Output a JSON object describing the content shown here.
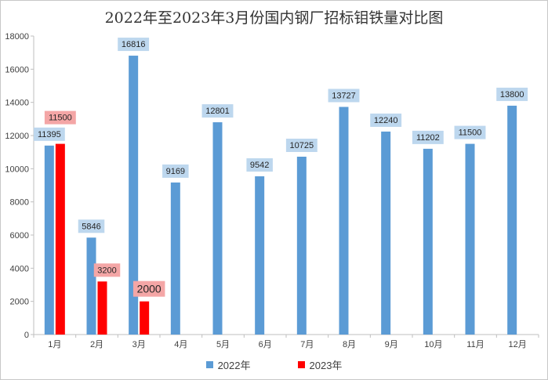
{
  "chart_data": {
    "type": "bar",
    "title": "2022年至2023年3月份国内钢厂招标钼铁量对比图",
    "categories": [
      "1月",
      "2月",
      "3月",
      "4月",
      "5月",
      "6月",
      "7月",
      "8月",
      "9月",
      "10月",
      "11月",
      "12月"
    ],
    "series": [
      {
        "name": "2022年",
        "color": "#5b9bd5",
        "values": [
          11395,
          5846,
          16816,
          9169,
          12801,
          9542,
          10725,
          13727,
          12240,
          11202,
          11500,
          13800
        ]
      },
      {
        "name": "2023年",
        "color": "#ff0000",
        "values": [
          11500,
          3200,
          2000,
          null,
          null,
          null,
          null,
          null,
          null,
          null,
          null,
          null
        ]
      }
    ],
    "ylim": [
      0,
      18000
    ],
    "yticks": [
      0,
      2000,
      4000,
      6000,
      8000,
      10000,
      12000,
      14000,
      16000,
      18000
    ],
    "xlabel": "",
    "ylabel": "",
    "grid": false,
    "legend": "bottom",
    "label_box_colors": {
      "2022年": "#bdd7ee",
      "2023年": "#f4a6a6"
    }
  }
}
